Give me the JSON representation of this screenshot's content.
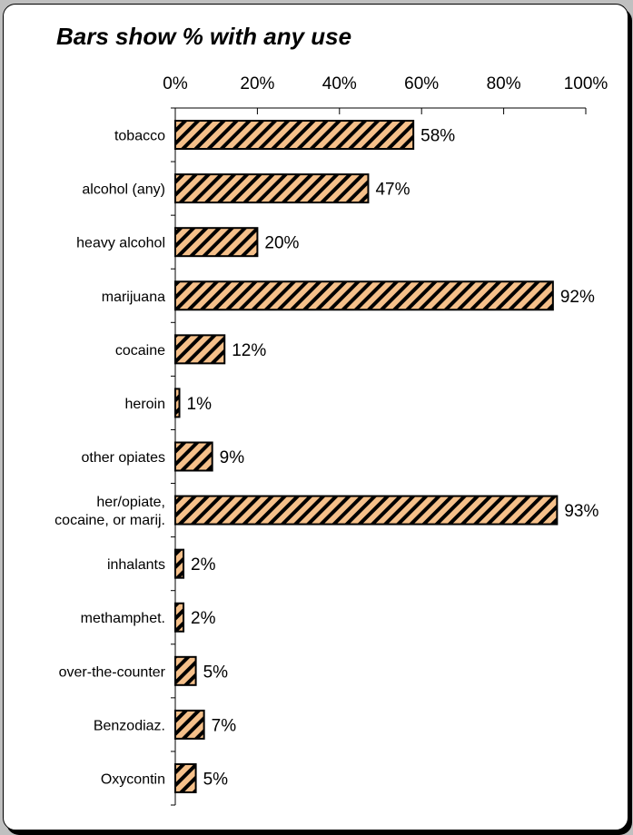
{
  "chart_data": {
    "type": "bar",
    "orientation": "horizontal",
    "title": "Bars show % with any use",
    "categories": [
      [
        "tobacco"
      ],
      [
        "alcohol  (any)"
      ],
      [
        "heavy alcohol"
      ],
      [
        "marijuana"
      ],
      [
        "cocaine"
      ],
      [
        "heroin"
      ],
      [
        "other opiates"
      ],
      [
        "her/opiate,",
        "cocaine, or marij."
      ],
      [
        "inhalants"
      ],
      [
        "methamphet."
      ],
      [
        "over-the-counter"
      ],
      [
        "Benzodiaz."
      ],
      [
        "Oxycontin"
      ]
    ],
    "values": [
      58,
      47,
      20,
      92,
      12,
      1,
      9,
      93,
      2,
      2,
      5,
      7,
      5
    ],
    "value_labels": [
      "58%",
      "47%",
      "20%",
      "92%",
      "12%",
      "1%",
      "9%",
      "93%",
      "2%",
      "2%",
      "5%",
      "7%",
      "5%"
    ],
    "xlim": [
      0,
      100
    ],
    "x_ticks": [
      0,
      20,
      40,
      60,
      80,
      100
    ],
    "x_tick_labels": [
      "0%",
      "20%",
      "40%",
      "60%",
      "80%",
      "100%"
    ],
    "x_axis_position": "top",
    "grid": false,
    "legend": "none",
    "bar_fill": "#f5c08a",
    "bar_hatch": "#000000",
    "background": "#ffffff",
    "page_background": "#c0c0c0"
  }
}
